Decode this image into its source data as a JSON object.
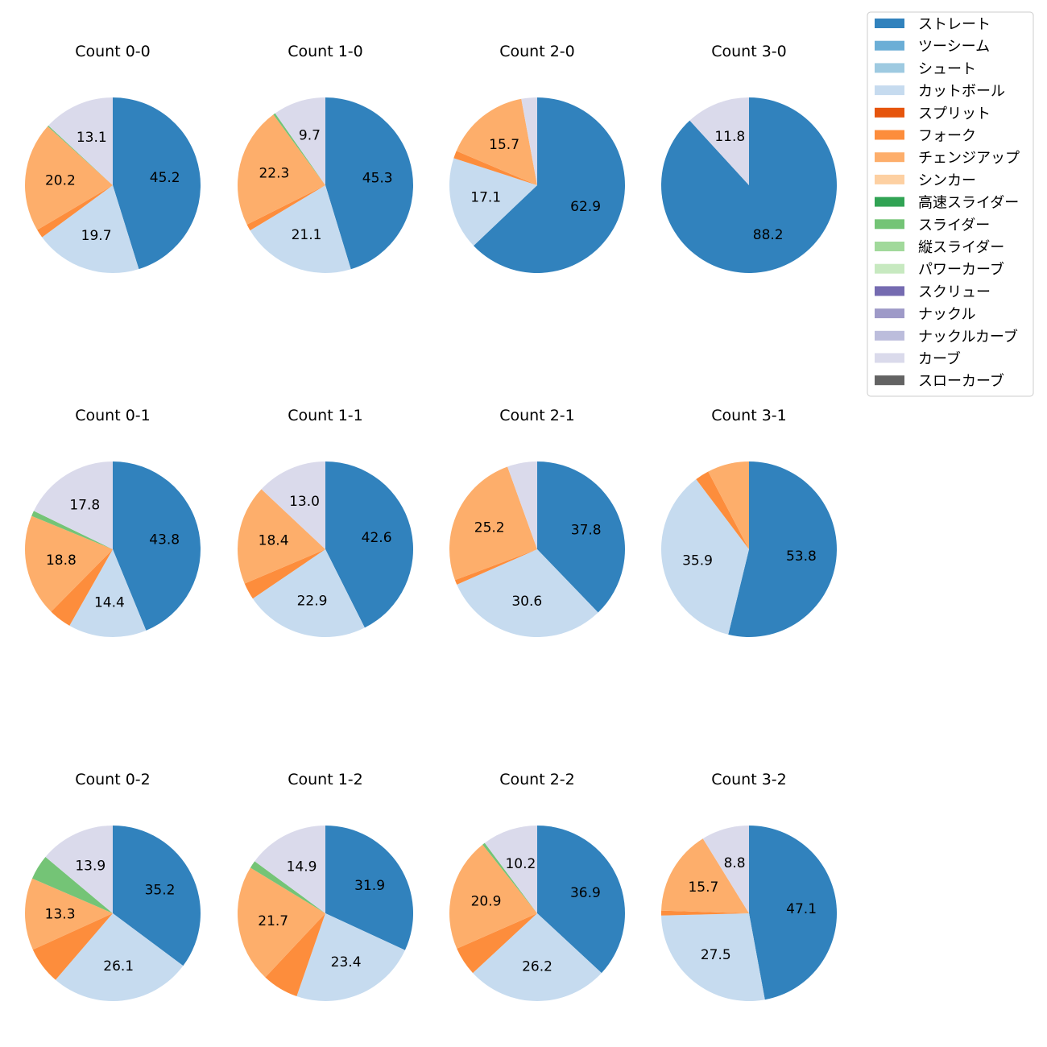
{
  "colors": {
    "ストレート": "#3182bd",
    "ツーシーム": "#6baed6",
    "シュート": "#9ecae1",
    "カットボール": "#c6dbef",
    "スプリット": "#e6550d",
    "フォーク": "#fd8d3c",
    "チェンジアップ": "#fdae6b",
    "シンカー": "#fdd0a2",
    "高速スライダー": "#31a354",
    "スライダー": "#74c476",
    "縦スライダー": "#a1d99b",
    "パワーカーブ": "#c7e9c0",
    "スクリュー": "#756bb1",
    "ナックル": "#9e9ac8",
    "ナックルカーブ": "#bcbddc",
    "カーブ": "#dadaeb",
    "スローカーブ": "#636363"
  },
  "legend": [
    "ストレート",
    "ツーシーム",
    "シュート",
    "カットボール",
    "スプリット",
    "フォーク",
    "チェンジアップ",
    "シンカー",
    "高速スライダー",
    "スライダー",
    "縦スライダー",
    "パワーカーブ",
    "スクリュー",
    "ナックル",
    "ナックルカーブ",
    "カーブ",
    "スローカーブ"
  ],
  "chart_data": [
    {
      "type": "pie",
      "title": "Count 0-0",
      "slices": [
        {
          "pitch": "ストレート",
          "value": 45.2,
          "label": "45.2"
        },
        {
          "pitch": "カットボール",
          "value": 19.7,
          "label": "19.7"
        },
        {
          "pitch": "フォーク",
          "value": 1.6,
          "label": ""
        },
        {
          "pitch": "チェンジアップ",
          "value": 20.2,
          "label": "20.2"
        },
        {
          "pitch": "スライダー",
          "value": 0.2,
          "label": ""
        },
        {
          "pitch": "カーブ",
          "value": 13.1,
          "label": "13.1"
        }
      ]
    },
    {
      "type": "pie",
      "title": "Count 1-0",
      "slices": [
        {
          "pitch": "ストレート",
          "value": 45.3,
          "label": "45.3"
        },
        {
          "pitch": "カットボール",
          "value": 21.1,
          "label": "21.1"
        },
        {
          "pitch": "フォーク",
          "value": 1.2,
          "label": ""
        },
        {
          "pitch": "チェンジアップ",
          "value": 22.3,
          "label": "22.3"
        },
        {
          "pitch": "スライダー",
          "value": 0.4,
          "label": ""
        },
        {
          "pitch": "カーブ",
          "value": 9.7,
          "label": "9.7"
        }
      ]
    },
    {
      "type": "pie",
      "title": "Count 2-0",
      "slices": [
        {
          "pitch": "ストレート",
          "value": 62.9,
          "label": "62.9"
        },
        {
          "pitch": "カットボール",
          "value": 17.1,
          "label": "17.1"
        },
        {
          "pitch": "フォーク",
          "value": 1.4,
          "label": ""
        },
        {
          "pitch": "チェンジアップ",
          "value": 15.7,
          "label": "15.7"
        },
        {
          "pitch": "カーブ",
          "value": 2.9,
          "label": ""
        }
      ]
    },
    {
      "type": "pie",
      "title": "Count 3-0",
      "slices": [
        {
          "pitch": "ストレート",
          "value": 88.2,
          "label": "88.2"
        },
        {
          "pitch": "カーブ",
          "value": 11.8,
          "label": "11.8"
        }
      ]
    },
    {
      "type": "pie",
      "title": "Count 0-1",
      "slices": [
        {
          "pitch": "ストレート",
          "value": 43.8,
          "label": "43.8"
        },
        {
          "pitch": "カットボール",
          "value": 14.4,
          "label": "14.4"
        },
        {
          "pitch": "フォーク",
          "value": 4.2,
          "label": ""
        },
        {
          "pitch": "チェンジアップ",
          "value": 18.8,
          "label": "18.8"
        },
        {
          "pitch": "スライダー",
          "value": 1.0,
          "label": ""
        },
        {
          "pitch": "カーブ",
          "value": 17.8,
          "label": "17.8"
        }
      ]
    },
    {
      "type": "pie",
      "title": "Count 1-1",
      "slices": [
        {
          "pitch": "ストレート",
          "value": 42.6,
          "label": "42.6"
        },
        {
          "pitch": "カットボール",
          "value": 22.9,
          "label": "22.9"
        },
        {
          "pitch": "フォーク",
          "value": 3.1,
          "label": ""
        },
        {
          "pitch": "チェンジアップ",
          "value": 18.4,
          "label": "18.4"
        },
        {
          "pitch": "カーブ",
          "value": 13.0,
          "label": "13.0"
        }
      ]
    },
    {
      "type": "pie",
      "title": "Count 2-1",
      "slices": [
        {
          "pitch": "ストレート",
          "value": 37.8,
          "label": "37.8"
        },
        {
          "pitch": "カットボール",
          "value": 30.6,
          "label": "30.6"
        },
        {
          "pitch": "フォーク",
          "value": 0.9,
          "label": ""
        },
        {
          "pitch": "チェンジアップ",
          "value": 25.2,
          "label": "25.2"
        },
        {
          "pitch": "カーブ",
          "value": 5.5,
          "label": ""
        }
      ]
    },
    {
      "type": "pie",
      "title": "Count 3-1",
      "slices": [
        {
          "pitch": "ストレート",
          "value": 53.8,
          "label": "53.8"
        },
        {
          "pitch": "カットボール",
          "value": 35.9,
          "label": "35.9"
        },
        {
          "pitch": "フォーク",
          "value": 2.6,
          "label": ""
        },
        {
          "pitch": "チェンジアップ",
          "value": 7.7,
          "label": ""
        }
      ]
    },
    {
      "type": "pie",
      "title": "Count 0-2",
      "slices": [
        {
          "pitch": "ストレート",
          "value": 35.2,
          "label": "35.2"
        },
        {
          "pitch": "カットボール",
          "value": 26.1,
          "label": "26.1"
        },
        {
          "pitch": "フォーク",
          "value": 6.9,
          "label": ""
        },
        {
          "pitch": "チェンジアップ",
          "value": 13.3,
          "label": "13.3"
        },
        {
          "pitch": "スライダー",
          "value": 4.6,
          "label": ""
        },
        {
          "pitch": "カーブ",
          "value": 13.9,
          "label": "13.9"
        }
      ]
    },
    {
      "type": "pie",
      "title": "Count 1-2",
      "slices": [
        {
          "pitch": "ストレート",
          "value": 31.9,
          "label": "31.9"
        },
        {
          "pitch": "カットボール",
          "value": 23.4,
          "label": "23.4"
        },
        {
          "pitch": "フォーク",
          "value": 6.7,
          "label": ""
        },
        {
          "pitch": "チェンジアップ",
          "value": 21.7,
          "label": "21.7"
        },
        {
          "pitch": "スライダー",
          "value": 1.4,
          "label": ""
        },
        {
          "pitch": "カーブ",
          "value": 14.9,
          "label": "14.9"
        }
      ]
    },
    {
      "type": "pie",
      "title": "Count 2-2",
      "slices": [
        {
          "pitch": "ストレート",
          "value": 36.9,
          "label": "36.9"
        },
        {
          "pitch": "カットボール",
          "value": 26.2,
          "label": "26.2"
        },
        {
          "pitch": "フォーク",
          "value": 5.3,
          "label": ""
        },
        {
          "pitch": "チェンジアップ",
          "value": 20.9,
          "label": "20.9"
        },
        {
          "pitch": "スライダー",
          "value": 0.5,
          "label": ""
        },
        {
          "pitch": "カーブ",
          "value": 10.2,
          "label": "10.2"
        }
      ]
    },
    {
      "type": "pie",
      "title": "Count 3-2",
      "slices": [
        {
          "pitch": "ストレート",
          "value": 47.1,
          "label": "47.1"
        },
        {
          "pitch": "カットボール",
          "value": 27.5,
          "label": "27.5"
        },
        {
          "pitch": "フォーク",
          "value": 0.9,
          "label": ""
        },
        {
          "pitch": "チェンジアップ",
          "value": 15.7,
          "label": "15.7"
        },
        {
          "pitch": "カーブ",
          "value": 8.8,
          "label": "8.8"
        }
      ]
    }
  ]
}
